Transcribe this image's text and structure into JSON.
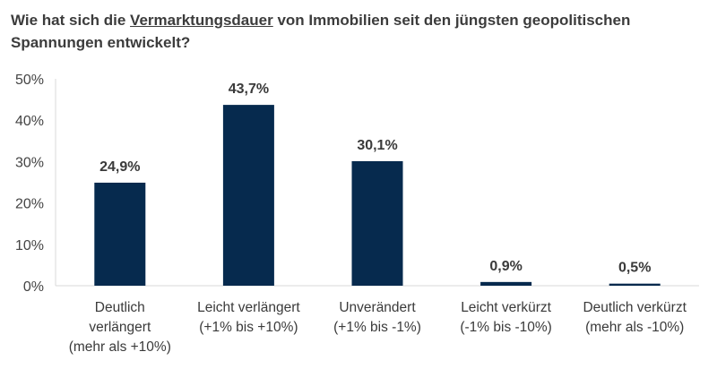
{
  "colors": {
    "bar": "#062a4e",
    "axis": "#d9d9d9"
  },
  "chart_data": {
    "type": "bar",
    "title_parts": [
      "Wie hat sich die ",
      "Vermarktungsdauer",
      " von Immobilien seit den jüngsten geopolitischen Spannungen entwickelt?"
    ],
    "categories": [
      [
        "Deutlich",
        "verlängert",
        "(mehr als +10%)"
      ],
      [
        "Leicht verlängert",
        "(+1% bis +10%)"
      ],
      [
        "Unverändert",
        "(+1% bis -1%)"
      ],
      [
        "Leicht verkürzt",
        "(-1% bis -10%)"
      ],
      [
        "Deutlich verkürzt",
        "(mehr als -10%)"
      ]
    ],
    "values": [
      24.9,
      43.7,
      30.1,
      0.9,
      0.5
    ],
    "data_labels": [
      "24,9%",
      "43,7%",
      "30,1%",
      "0,9%",
      "0,5%"
    ],
    "ylim": [
      0,
      50
    ],
    "yticks": [
      0,
      10,
      20,
      30,
      40,
      50
    ],
    "ytick_labels": [
      "0%",
      "10%",
      "20%",
      "30%",
      "40%",
      "50%"
    ],
    "grid": false,
    "legend": "none"
  }
}
